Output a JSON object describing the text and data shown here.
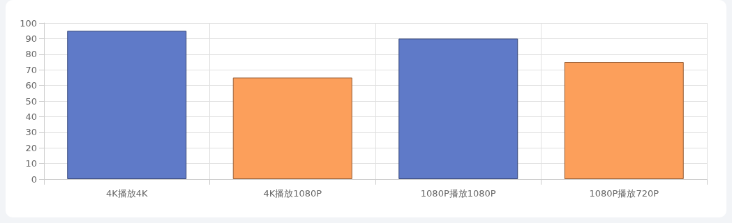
{
  "chart_data": {
    "type": "bar",
    "categories": [
      "4K播放4K",
      "4K播放1080P",
      "1080P播放1080P",
      "1080P播放720P"
    ],
    "values": [
      95,
      65,
      90,
      75
    ],
    "colors": [
      "#5f7ac8",
      "#fc9f5b",
      "#5f7ac8",
      "#fc9f5b"
    ],
    "ylim": [
      0,
      100
    ],
    "yticks": [
      0,
      10,
      20,
      30,
      40,
      50,
      60,
      70,
      80,
      90,
      100
    ],
    "grid": true
  }
}
